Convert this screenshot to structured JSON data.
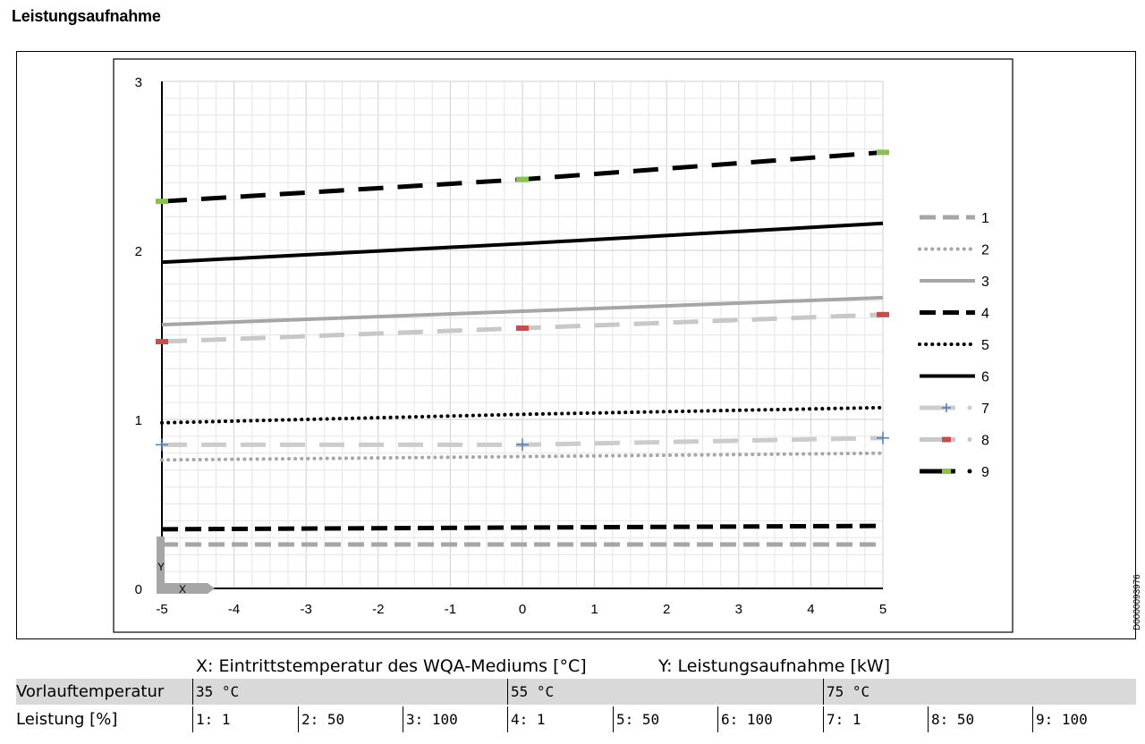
{
  "page": {
    "title": "Leistungsaufnahme",
    "doc_id": "D0000093976"
  },
  "chart_data": {
    "type": "line",
    "title": "",
    "xlabel": "X",
    "ylabel": "Y",
    "xlim": [
      -5,
      5
    ],
    "ylim": [
      0,
      3
    ],
    "xticks": [
      "-5",
      "-4",
      "-3",
      "-2",
      "-1",
      "0",
      "1",
      "2",
      "3",
      "4",
      "5"
    ],
    "yticks": [
      "0",
      "1",
      "2",
      "3"
    ],
    "grid": true,
    "legend_position": "right",
    "x": [
      -5,
      0,
      5
    ],
    "series": [
      {
        "name": "1",
        "values": [
          0.26,
          0.26,
          0.26
        ],
        "style": "dashed",
        "color": "#a6a6a6"
      },
      {
        "name": "2",
        "values": [
          0.76,
          0.78,
          0.8
        ],
        "style": "dotted",
        "color": "#a6a6a6"
      },
      {
        "name": "3",
        "values": [
          1.56,
          1.64,
          1.72
        ],
        "style": "solid",
        "color": "#a6a6a6"
      },
      {
        "name": "4",
        "values": [
          0.35,
          0.36,
          0.37
        ],
        "style": "dashed",
        "color": "#000000"
      },
      {
        "name": "5",
        "values": [
          0.98,
          1.03,
          1.07
        ],
        "style": "dotted",
        "color": "#000000"
      },
      {
        "name": "6",
        "values": [
          1.93,
          2.04,
          2.16
        ],
        "style": "solid",
        "color": "#000000"
      },
      {
        "name": "7",
        "values": [
          0.85,
          0.85,
          0.89
        ],
        "style": "longdash",
        "color": "#cccccc",
        "marker": "plus",
        "marker_color": "#4a7ebb"
      },
      {
        "name": "8",
        "values": [
          1.46,
          1.54,
          1.62
        ],
        "style": "longdash",
        "color": "#c8c8c8",
        "marker": "dash",
        "marker_color": "#c0504d"
      },
      {
        "name": "9",
        "values": [
          2.29,
          2.42,
          2.58
        ],
        "style": "longdash",
        "color": "#000000",
        "marker": "dash",
        "marker_color": "#8cc152"
      }
    ]
  },
  "axis_captions": {
    "x": "X: Eintrittstemperatur des WQA-Mediums [°C]",
    "y": "Y: Leistungsaufnahme [kW]"
  },
  "table": {
    "row1_label": "Vorlauftemperatur",
    "row1_cells": [
      "35 °C",
      "55 °C",
      "75 °C"
    ],
    "row2_label": "Leistung [%]",
    "row2_cells": [
      "1: 1",
      "2: 50",
      "3: 100",
      "4: 1",
      "5: 50",
      "6: 100",
      "7: 1",
      "8: 50",
      "9: 100"
    ]
  }
}
